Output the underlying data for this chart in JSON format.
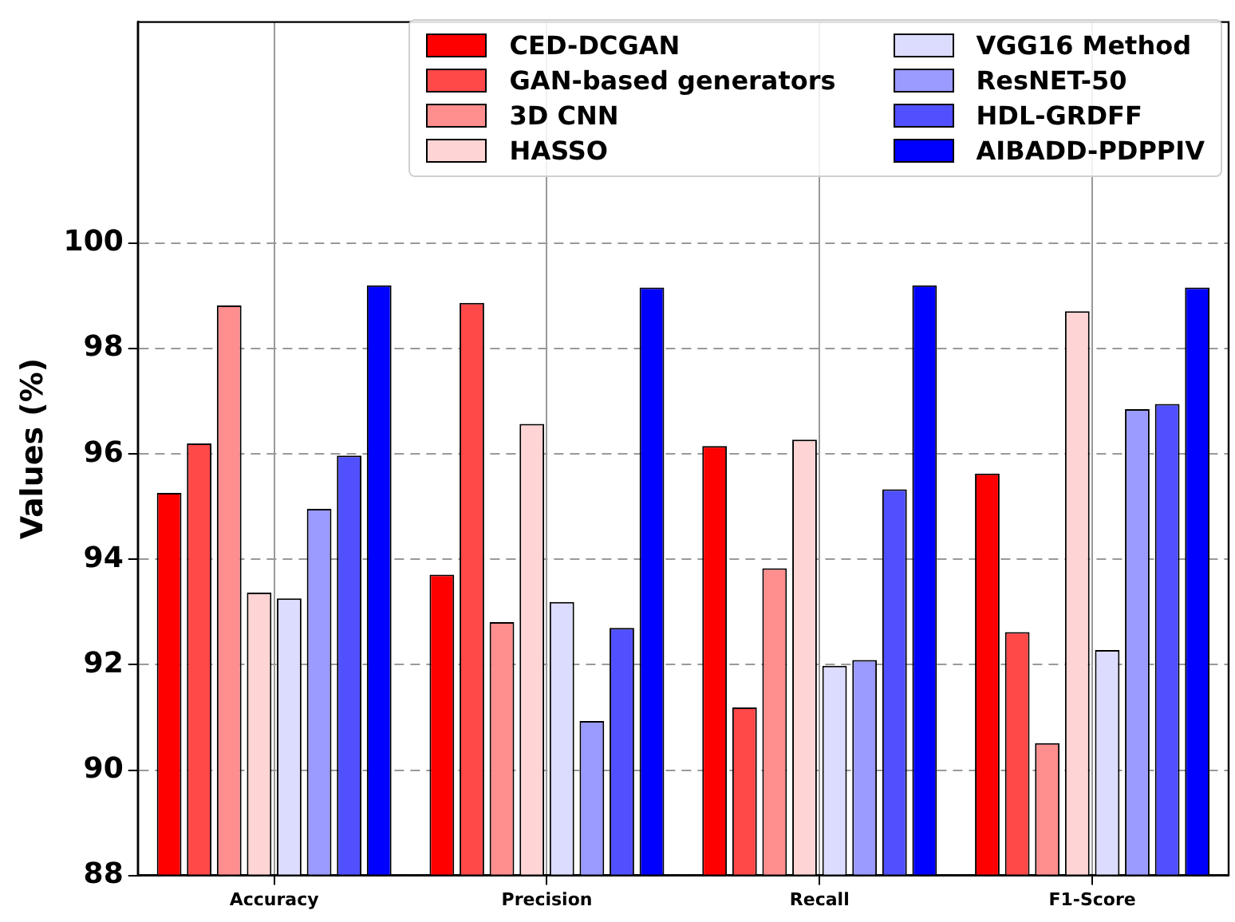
{
  "chart_data": {
    "type": "bar",
    "ylabel": "Values (%)",
    "categories": [
      "Accuracy",
      "Precision",
      "Recall",
      "F1-Score"
    ],
    "series": [
      {
        "name": "CED-DCGAN",
        "color": "#ff0000",
        "values": [
          95.26,
          93.71,
          96.15,
          95.63
        ]
      },
      {
        "name": "GAN-based generators",
        "color": "#ff4848",
        "values": [
          96.2,
          98.87,
          91.19,
          92.62
        ]
      },
      {
        "name": "3D CNN",
        "color": "#ff8e8e",
        "values": [
          98.82,
          92.81,
          93.83,
          90.51
        ]
      },
      {
        "name": "HASSO",
        "color": "#ffd4d4",
        "values": [
          93.37,
          96.57,
          96.27,
          98.71
        ]
      },
      {
        "name": "VGG16 Method",
        "color": "#dcdcff",
        "values": [
          93.26,
          93.19,
          91.98,
          92.28
        ]
      },
      {
        "name": "ResNET-50",
        "color": "#9a9aff",
        "values": [
          94.96,
          90.93,
          92.09,
          96.85
        ]
      },
      {
        "name": "HDL-GRDFF",
        "color": "#5050ff",
        "values": [
          95.97,
          92.7,
          95.33,
          96.95
        ]
      },
      {
        "name": "AIBADD-PDPPIV",
        "color": "#0000ff",
        "values": [
          99.2,
          99.16,
          99.2,
          99.16
        ]
      }
    ],
    "ylim": [
      88,
      104.2
    ],
    "yticks": [
      88,
      90,
      92,
      94,
      96,
      98,
      100
    ],
    "grid": true,
    "legend": "top right"
  }
}
